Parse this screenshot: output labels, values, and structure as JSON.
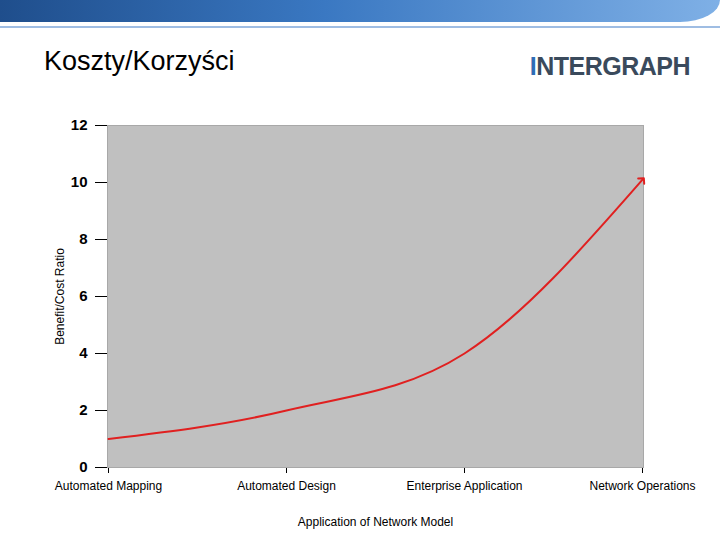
{
  "logo": {
    "text": "INTERGRAPH"
  },
  "chart_data": {
    "type": "line",
    "title": "Koszty/Korzyści",
    "x_label": "Application of Network Model",
    "y_label": "Benefit/Cost Ratio",
    "categories": [
      "Automated Mapping",
      "Automated Design",
      "Enterprise Application",
      "Network Operations"
    ],
    "values": [
      1.0,
      2.0,
      4.0,
      10.1
    ],
    "color": "#e02020",
    "marker": "arrow",
    "ylim": [
      0,
      12
    ],
    "yticks": [
      0,
      2,
      4,
      6,
      8,
      10,
      12
    ],
    "grid": false
  }
}
